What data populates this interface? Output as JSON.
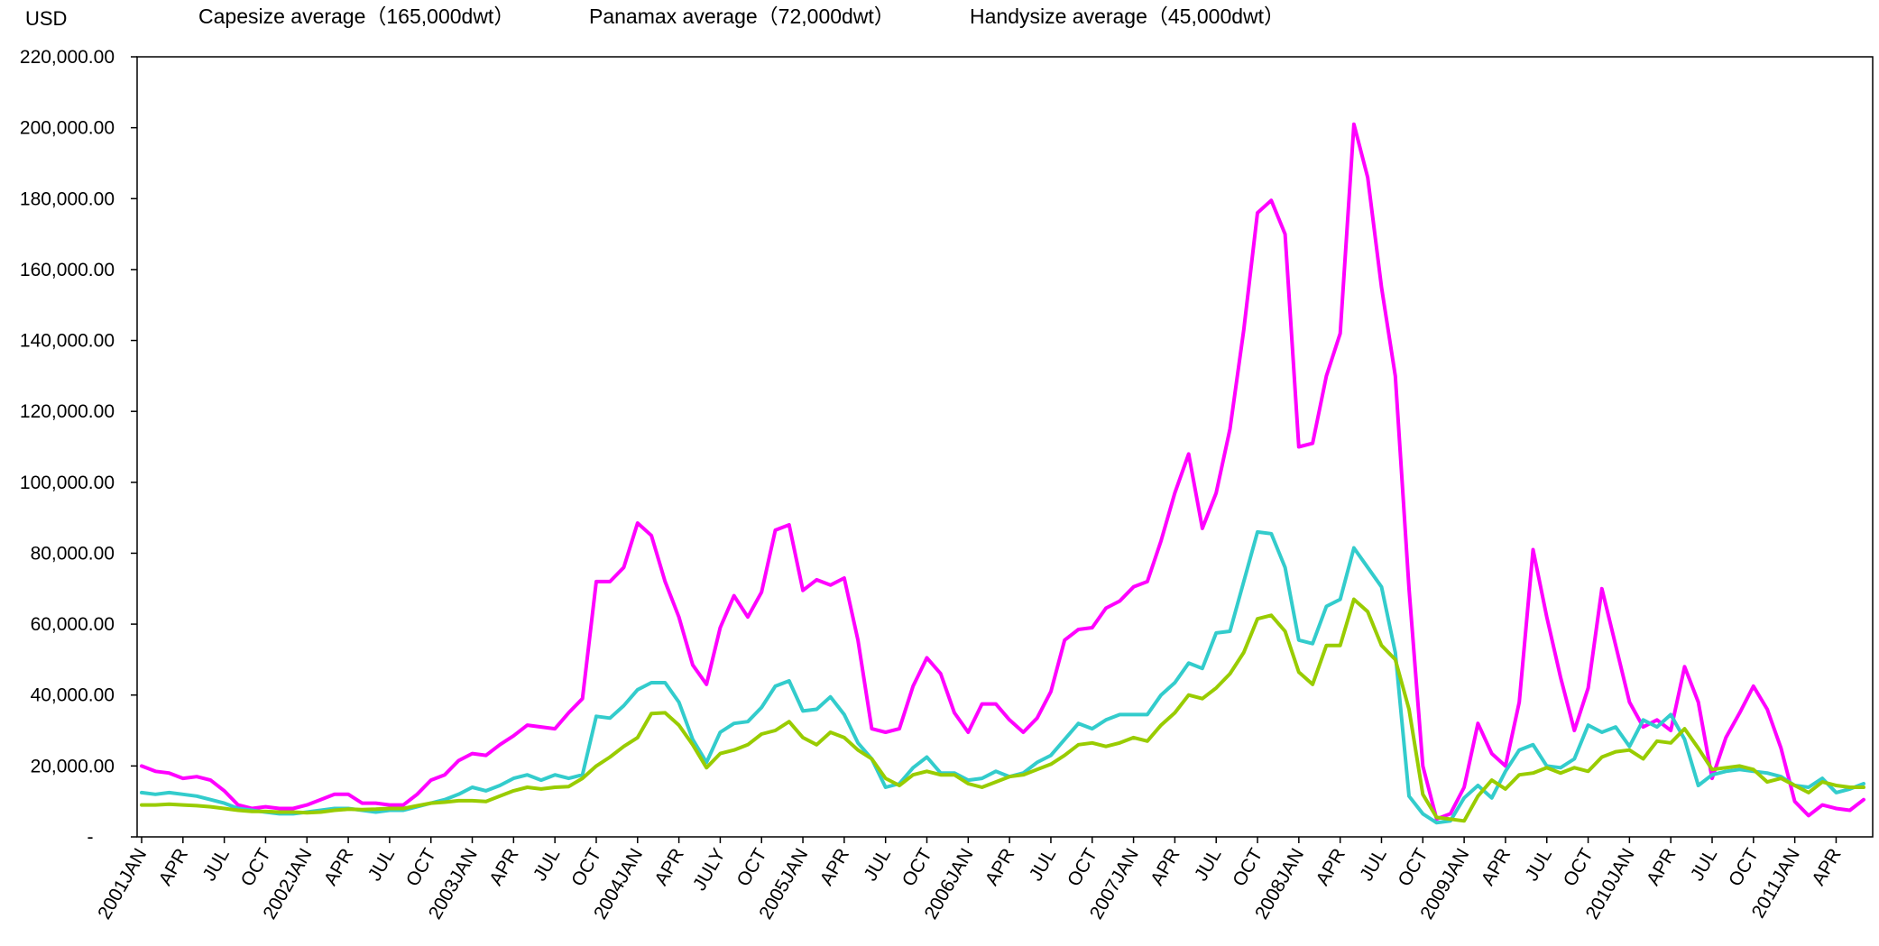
{
  "chart_data": {
    "type": "line",
    "y_unit_label": "USD",
    "ylim": [
      0,
      220000
    ],
    "y_ticks": [
      0,
      20000,
      40000,
      60000,
      80000,
      100000,
      120000,
      140000,
      160000,
      180000,
      200000,
      220000
    ],
    "y_tick_labels": [
      "-",
      "20,000.00",
      "40,000.00",
      "60,000.00",
      "80,000.00",
      "100,000.00",
      "120,000.00",
      "140,000.00",
      "160,000.00",
      "180,000.00",
      "200,000.00",
      "220,000.00"
    ],
    "grid": false,
    "legend_position": "top",
    "x_tick_labels": [
      "2001JAN",
      "APR",
      "JUL",
      "OCT",
      "2002JAN",
      "APR",
      "JUL",
      "OCT",
      "2003JAN",
      "APR",
      "JUL",
      "OCT",
      "2004JAN",
      "APR",
      "JULY",
      "OCT",
      "2005JAN",
      "APR",
      "JUL",
      "OCT",
      "2006JAN",
      "APR",
      "JUL",
      "OCT",
      "2007JAN",
      "APR",
      "JUL",
      "OCT",
      "2008JAN",
      "APR",
      "JUL",
      "OCT",
      "2009JAN",
      "APR",
      "JUL",
      "OCT",
      "2010JAN",
      "APR",
      "JUL",
      "OCT",
      "2011JAN",
      "APR"
    ],
    "series": [
      {
        "name": "Capesize average（165,000dwt）",
        "color": "#ff00ff",
        "values": [
          20000,
          18500,
          18000,
          16500,
          17000,
          16000,
          13000,
          9000,
          8000,
          8500,
          8000,
          8000,
          9000,
          10500,
          12000,
          12000,
          9500,
          9500,
          9000,
          9000,
          12000,
          16000,
          17500,
          21500,
          23500,
          23000,
          26000,
          28500,
          31500,
          31000,
          30500,
          35000,
          39000,
          72000,
          72000,
          76000,
          88500,
          85000,
          72000,
          62000,
          48500,
          43000,
          59000,
          68000,
          62000,
          69000,
          86500,
          88000,
          69500,
          72500,
          71000,
          73000,
          55500,
          30500,
          29500,
          30500,
          42500,
          50500,
          46000,
          35000,
          29500,
          37500,
          37500,
          33000,
          29500,
          33500,
          41000,
          55500,
          58500,
          59000,
          64500,
          66500,
          70500,
          72000,
          83500,
          97000,
          108000,
          87000,
          97000,
          115000,
          143000,
          176000,
          179500,
          170000,
          110000,
          111000,
          130000,
          142000,
          201000,
          186000,
          155000,
          130000,
          70000,
          20000,
          5000,
          6500,
          14000,
          32000,
          23500,
          20000,
          38000,
          81000,
          62000,
          45000,
          30000,
          42000,
          70000,
          54000,
          38000,
          31000,
          33000,
          30000,
          48000,
          38000,
          16500,
          28000,
          35000,
          42500,
          36000,
          25000,
          10000,
          6000,
          9000,
          8000,
          7500,
          10500
        ]
      },
      {
        "name": "Panamax average（72,000dwt）",
        "color": "#33cccc",
        "values": [
          12500,
          12000,
          12500,
          12000,
          11500,
          10500,
          9500,
          8000,
          7500,
          7000,
          6500,
          6500,
          7000,
          7500,
          8000,
          8000,
          7500,
          7000,
          7500,
          7500,
          8500,
          9500,
          10500,
          12000,
          14000,
          13000,
          14500,
          16500,
          17500,
          16000,
          17500,
          16500,
          17500,
          34000,
          33500,
          37000,
          41500,
          43500,
          43500,
          38000,
          27500,
          21000,
          29500,
          32000,
          32500,
          36500,
          42500,
          44000,
          35500,
          36000,
          39500,
          34500,
          26500,
          22000,
          14000,
          15000,
          19500,
          22500,
          18000,
          18000,
          16000,
          16500,
          18500,
          17000,
          18000,
          21000,
          23000,
          27500,
          32000,
          30500,
          33000,
          34500,
          34500,
          34500,
          40000,
          43500,
          49000,
          47500,
          57500,
          58000,
          72000,
          86000,
          85500,
          76000,
          55500,
          54500,
          65000,
          67000,
          81500,
          76000,
          70500,
          52000,
          11500,
          6500,
          4000,
          4500,
          11000,
          14500,
          11000,
          18500,
          24500,
          26000,
          20000,
          19500,
          22000,
          31500,
          29500,
          31000,
          25500,
          33000,
          31000,
          34500,
          27500,
          14500,
          17500,
          18500,
          19000,
          18500,
          18000,
          17000,
          14500,
          14000,
          16500,
          12500,
          13500,
          15000
        ]
      },
      {
        "name": "Handysize average（45,000dwt）",
        "color": "#99cc00",
        "values": [
          9000,
          9000,
          9200,
          9000,
          8800,
          8500,
          8000,
          7500,
          7200,
          7200,
          7000,
          7000,
          6800,
          7000,
          7500,
          7800,
          7700,
          7800,
          8000,
          8000,
          8800,
          9500,
          9800,
          10200,
          10200,
          10000,
          11500,
          13000,
          14000,
          13500,
          14000,
          14200,
          16500,
          20000,
          22500,
          25500,
          28000,
          34800,
          35000,
          31500,
          26000,
          19500,
          23500,
          24500,
          26000,
          29000,
          30000,
          32500,
          28000,
          26000,
          29500,
          28000,
          24500,
          22000,
          16500,
          14500,
          17500,
          18500,
          17500,
          17500,
          15000,
          14000,
          15500,
          17000,
          17500,
          19000,
          20500,
          23000,
          26000,
          26500,
          25500,
          26500,
          28000,
          27000,
          31500,
          35000,
          40000,
          39000,
          42000,
          46000,
          52000,
          61500,
          62500,
          58000,
          46500,
          43000,
          54000,
          54000,
          67000,
          63500,
          54000,
          50000,
          36000,
          12000,
          5500,
          5000,
          4500,
          11500,
          16000,
          13500,
          17500,
          18000,
          19500,
          18000,
          19500,
          18500,
          22500,
          24000,
          24500,
          22000,
          27000,
          26500,
          30500,
          25000,
          19000,
          19500,
          20000,
          19000,
          15500,
          16500,
          14500,
          12500,
          15500,
          14500,
          14000,
          14000
        ]
      }
    ]
  }
}
